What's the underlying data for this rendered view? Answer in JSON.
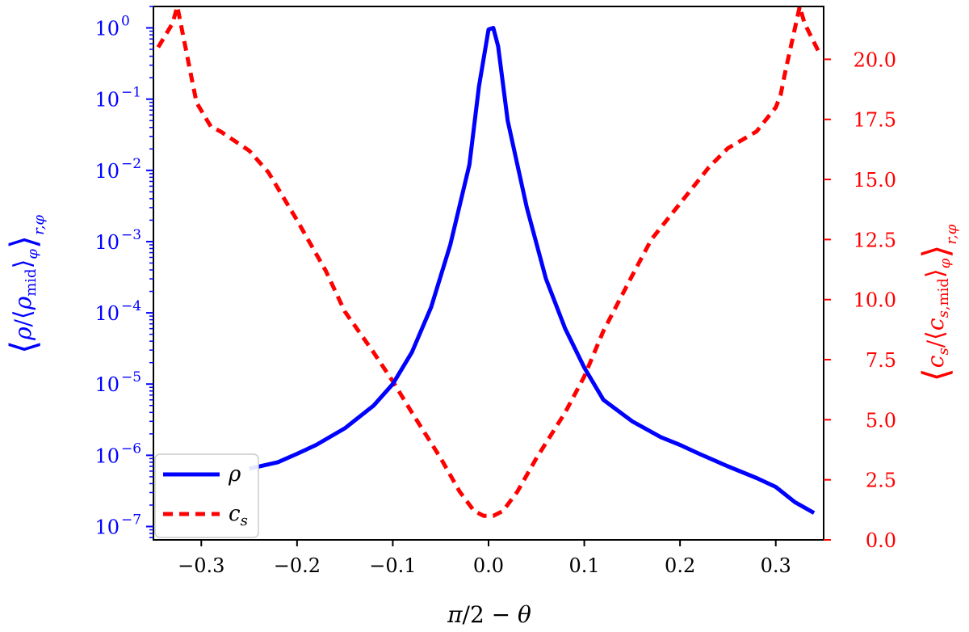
{
  "chart_data": {
    "type": "line",
    "xlabel": "π/2 − θ",
    "ylabel_left": "⟨ρ/⟨ρ_mid⟩_φ⟩_{r,φ}",
    "ylabel_right": "⟨c_s/⟨c_{s,mid}⟩_φ⟩_{r,φ}",
    "xlim": [
      -0.35,
      0.35
    ],
    "ylim_left": [
      6.5e-08,
      2.0
    ],
    "ylim_left_scale": "log",
    "ylim_right": [
      0.0,
      22.2
    ],
    "xticks": [
      -0.3,
      -0.2,
      -0.1,
      0.0,
      0.1,
      0.2,
      0.3
    ],
    "xtick_labels": [
      "−0.3",
      "−0.2",
      "−0.1",
      "0.0",
      "0.1",
      "0.2",
      "0.3"
    ],
    "yticks_left": [
      1e-07,
      1e-06,
      1e-05,
      0.0001,
      0.001,
      0.01,
      0.1,
      1
    ],
    "yticks_left_labels": [
      "10",
      "10",
      "10",
      "10",
      "10",
      "10",
      "10",
      "10"
    ],
    "yticks_left_exponents": [
      "−7",
      "−6",
      "−5",
      "−4",
      "−3",
      "−2",
      "−1",
      "0"
    ],
    "yticks_right": [
      0.0,
      2.5,
      5.0,
      7.5,
      10.0,
      12.5,
      15.0,
      17.5,
      20.0
    ],
    "yticks_right_labels": [
      "0.0",
      "2.5",
      "5.0",
      "7.5",
      "10.0",
      "12.5",
      "15.0",
      "17.5",
      "20.0"
    ],
    "grid": false,
    "legend_position": "lower-left",
    "colors": {
      "rho": "#0000ff",
      "cs": "#ff0000",
      "left_axis": "#0000ff",
      "right_axis": "#ff0000"
    },
    "series": [
      {
        "name": "ρ",
        "axis": "left",
        "style": "solid",
        "x": [
          -0.25,
          -0.22,
          -0.2,
          -0.18,
          -0.15,
          -0.12,
          -0.1,
          -0.08,
          -0.06,
          -0.04,
          -0.02,
          -0.01,
          0.0,
          0.005,
          0.01,
          0.02,
          0.04,
          0.06,
          0.08,
          0.1,
          0.12,
          0.15,
          0.18,
          0.2,
          0.22,
          0.25,
          0.28,
          0.3,
          0.32,
          0.34
        ],
        "y": [
          6.5e-07,
          8e-07,
          1.05e-06,
          1.4e-06,
          2.4e-06,
          5e-06,
          1e-05,
          2.8e-05,
          0.00012,
          0.0009,
          0.012,
          0.15,
          0.95,
          1.0,
          0.55,
          0.05,
          0.003,
          0.0003,
          6e-05,
          1.7e-05,
          6e-06,
          3e-06,
          1.8e-06,
          1.4e-06,
          1.05e-06,
          7e-07,
          4.8e-07,
          3.6e-07,
          2.2e-07,
          1.55e-07
        ]
      },
      {
        "name": "c_s",
        "axis": "right",
        "style": "dashed",
        "x": [
          -0.345,
          -0.33,
          -0.325,
          -0.31,
          -0.305,
          -0.29,
          -0.28,
          -0.25,
          -0.23,
          -0.2,
          -0.17,
          -0.15,
          -0.12,
          -0.1,
          -0.08,
          -0.05,
          -0.03,
          -0.015,
          -0.005,
          0.0,
          0.005,
          0.015,
          0.03,
          0.05,
          0.08,
          0.1,
          0.12,
          0.15,
          0.17,
          0.2,
          0.23,
          0.25,
          0.28,
          0.3,
          0.305,
          0.31,
          0.325,
          0.33,
          0.345
        ],
        "y": [
          20.5,
          21.5,
          22.2,
          19.2,
          18.2,
          17.2,
          17.0,
          16.2,
          15.3,
          13.3,
          11.2,
          9.5,
          7.8,
          6.6,
          5.3,
          3.4,
          2.0,
          1.2,
          1.0,
          1.0,
          1.0,
          1.2,
          2.0,
          3.4,
          5.3,
          6.8,
          8.7,
          11.0,
          12.5,
          14.0,
          15.5,
          16.3,
          17.0,
          18.0,
          18.5,
          19.5,
          22.2,
          21.5,
          20.3
        ]
      }
    ],
    "legend": [
      {
        "label": "ρ",
        "series": "rho",
        "style": "solid"
      },
      {
        "label": "c",
        "subscript": "s",
        "series": "cs",
        "style": "dashed"
      }
    ]
  }
}
